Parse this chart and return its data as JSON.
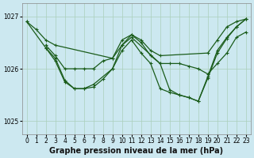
{
  "background_color": "#cce8f0",
  "grid_color": "#aacfba",
  "line_color": "#1a5c1a",
  "line_width": 0.9,
  "marker": "+",
  "marker_size": 3.5,
  "marker_edge_width": 0.8,
  "xlabel": "Graphe pression niveau de la mer (hPa)",
  "xlabel_fontsize": 7.0,
  "xlim": [
    -0.5,
    23.5
  ],
  "ylim": [
    1024.75,
    1027.25
  ],
  "yticks": [
    1025,
    1026,
    1027
  ],
  "xticks": [
    0,
    1,
    2,
    3,
    4,
    5,
    6,
    7,
    8,
    9,
    10,
    11,
    12,
    13,
    14,
    15,
    16,
    17,
    18,
    19,
    20,
    21,
    22,
    23
  ],
  "tick_fontsize": 5.5,
  "series": [
    {
      "x": [
        0,
        1,
        2,
        3,
        9,
        10,
        11,
        12,
        13,
        14,
        19,
        20,
        21,
        22,
        23
      ],
      "y": [
        1026.9,
        1026.75,
        1026.55,
        1026.45,
        1026.2,
        1026.55,
        1026.65,
        1026.55,
        1026.35,
        1026.25,
        1026.3,
        1026.55,
        1026.8,
        1026.9,
        1026.95
      ]
    },
    {
      "x": [
        2,
        3,
        4,
        5,
        6,
        7,
        8,
        9,
        10,
        11,
        12,
        13,
        14,
        15,
        16,
        17,
        18,
        19,
        20,
        21,
        22,
        23
      ],
      "y": [
        1026.45,
        1026.25,
        1026.0,
        1026.0,
        1026.0,
        1026.0,
        1026.15,
        1026.2,
        1026.45,
        1026.65,
        1026.5,
        1026.25,
        1026.1,
        1026.1,
        1026.1,
        1026.05,
        1026.0,
        1025.9,
        1026.1,
        1026.3,
        1026.6,
        1026.7
      ]
    },
    {
      "x": [
        2,
        3,
        4,
        5,
        6,
        7,
        8,
        9,
        10,
        11,
        14,
        15,
        16,
        17,
        18,
        19,
        20,
        21,
        22,
        23
      ],
      "y": [
        1026.4,
        1026.15,
        1025.75,
        1025.62,
        1025.62,
        1025.65,
        1025.8,
        1026.0,
        1026.45,
        1026.6,
        1026.1,
        1025.6,
        1025.5,
        1025.45,
        1025.38,
        1025.85,
        1026.35,
        1026.6,
        1026.8,
        1026.95
      ]
    },
    {
      "x": [
        0,
        2,
        3,
        4,
        5,
        6,
        7,
        9,
        10,
        11,
        12,
        13,
        14,
        15,
        16,
        17,
        18,
        19,
        20,
        21,
        22,
        23
      ],
      "y": [
        1026.9,
        1026.4,
        1026.2,
        1025.78,
        1025.62,
        1025.62,
        1025.7,
        1026.0,
        1026.35,
        1026.55,
        1026.3,
        1026.1,
        1025.62,
        1025.55,
        1025.5,
        1025.45,
        1025.38,
        1025.82,
        1026.3,
        1026.58,
        1026.8,
        1026.95
      ]
    }
  ]
}
